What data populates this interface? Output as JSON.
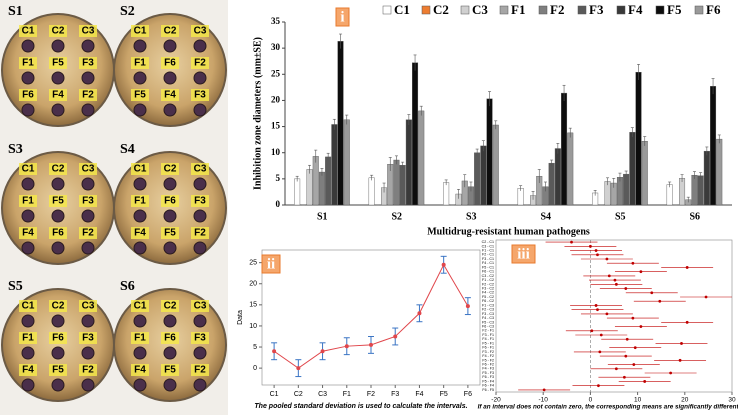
{
  "photos": [
    {
      "label": "S1",
      "wells": [
        "C1",
        "C2",
        "C3",
        "F1",
        "F5",
        "F3",
        "F6",
        "F4",
        "F2"
      ]
    },
    {
      "label": "S2",
      "wells": [
        "C1",
        "C2",
        "C3",
        "F1",
        "F6",
        "F2",
        "F5",
        "F4",
        "F3"
      ]
    },
    {
      "label": "S3",
      "wells": [
        "C1",
        "C2",
        "C3",
        "F1",
        "F5",
        "F3",
        "F4",
        "F6",
        "F2"
      ]
    },
    {
      "label": "S4",
      "wells": [
        "C1",
        "C2",
        "C3",
        "F1",
        "F6",
        "F3",
        "F4",
        "F5",
        "F2"
      ]
    },
    {
      "label": "S5",
      "wells": [
        "C1",
        "C2",
        "C3",
        "F1",
        "F6",
        "F3",
        "F4",
        "F5",
        "F2"
      ]
    },
    {
      "label": "S6",
      "wells": [
        "C1",
        "C2",
        "C3",
        "F1",
        "F6",
        "F3",
        "F4",
        "F5",
        "F2"
      ]
    }
  ],
  "chart_data": [
    {
      "type": "bar",
      "panel_label": "i",
      "ylabel": "Inhibition zone diameters (mm±SE)",
      "xlabel": "Multidrug-resistant human pathogens",
      "categories": [
        "S1",
        "S2",
        "S3",
        "S4",
        "S5",
        "S6"
      ],
      "ylim": [
        0,
        35
      ],
      "yticks": [
        0,
        5,
        10,
        15,
        20,
        25,
        30,
        35
      ],
      "series": [
        {
          "name": "C1",
          "color": "#ffffff",
          "values": [
            5,
            5.2,
            4.3,
            3.2,
            2.3,
            3.9
          ],
          "errors": [
            0.5,
            0.5,
            0.5,
            0.5,
            0.5,
            0.5
          ]
        },
        {
          "name": "C2",
          "color": "#ed7d31",
          "values": [
            0,
            0,
            0,
            0,
            0,
            0
          ],
          "errors": [
            0,
            0,
            0,
            0,
            0,
            0
          ]
        },
        {
          "name": "C3",
          "color": "#d0d0d0",
          "values": [
            6.8,
            3.3,
            2.1,
            1.8,
            4.5,
            5.1
          ],
          "errors": [
            0.8,
            0.9,
            0.9,
            0.8,
            0.7,
            0.7
          ]
        },
        {
          "name": "F1",
          "color": "#a6a6a6",
          "values": [
            9.3,
            7.8,
            4.6,
            5.5,
            4.2,
            1
          ],
          "errors": [
            1.2,
            1.3,
            1.2,
            1.3,
            0.9,
            0.5
          ]
        },
        {
          "name": "F2",
          "color": "#7f7f7f",
          "values": [
            6.3,
            8.6,
            3.5,
            3.5,
            5.3,
            5.7
          ],
          "errors": [
            0.7,
            0.8,
            0.9,
            0.9,
            0.8,
            0.7
          ]
        },
        {
          "name": "F3",
          "color": "#5a5a5a",
          "values": [
            9.2,
            7.6,
            10,
            8,
            5.9,
            5.6
          ],
          "errors": [
            0.7,
            0.6,
            0.7,
            0.6,
            0.6,
            0.6
          ]
        },
        {
          "name": "F4",
          "color": "#3a3a3a",
          "values": [
            15.4,
            16.3,
            11.3,
            10.8,
            13.9,
            10.3
          ],
          "errors": [
            1,
            1,
            1,
            1,
            0.9,
            0.8
          ]
        },
        {
          "name": "F5",
          "color": "#0d0d0d",
          "values": [
            31.3,
            27.2,
            20.3,
            21.4,
            25.4,
            22.7
          ],
          "errors": [
            1.4,
            1.5,
            1.4,
            1.5,
            1.5,
            1.5
          ]
        },
        {
          "name": "F6",
          "color": "#9a9a9a",
          "values": [
            16.3,
            18,
            15.3,
            13.8,
            12.2,
            12.6
          ],
          "errors": [
            0.9,
            0.9,
            0.8,
            0.9,
            0.9,
            0.8
          ]
        }
      ]
    },
    {
      "type": "line",
      "panel_label": "ii",
      "ylabel": "Data",
      "footnote": "The pooled standard deviation is used to calculate the intervals.",
      "categories": [
        "C1",
        "C2",
        "C3",
        "F1",
        "F2",
        "F3",
        "F4",
        "F5",
        "F6"
      ],
      "values": [
        4,
        0,
        4,
        5.2,
        5.5,
        7.5,
        13,
        24.5,
        14.7
      ],
      "errors": [
        2,
        2,
        2,
        2,
        2,
        2,
        2,
        2,
        2
      ],
      "color": "#e0464b",
      "error_color": "#3a74c4",
      "ylim": [
        -4,
        28
      ],
      "yticks": [
        0,
        5,
        10,
        15,
        20,
        25
      ]
    },
    {
      "type": "interval",
      "panel_label": "iii",
      "footnote": "If an interval does not contain zero, the corresponding means are significantly different.",
      "categories": [
        "C2 - C1",
        "C3 - C1",
        "F1 - C1",
        "F2 - C1",
        "F3 - C1",
        "F4 - C1",
        "F5 - C1",
        "F6 - C1",
        "C3 - C2",
        "F1 - C2",
        "F2 - C2",
        "F3 - C2",
        "F4 - C2",
        "F5 - C2",
        "F6 - C2",
        "F1 - C3",
        "F2 - C3",
        "F3 - C3",
        "F4 - C3",
        "F5 - C3",
        "F6 - C3",
        "F2 - F1",
        "F3 - F1",
        "F4 - F1",
        "F5 - F1",
        "F6 - F1",
        "F3 - F2",
        "F4 - F2",
        "F5 - F2",
        "F6 - F2",
        "F4 - F3",
        "F5 - F3",
        "F6 - F3",
        "F5 - F4",
        "F6 - F4",
        "F6 - F5"
      ],
      "values": [
        -4,
        0,
        1.2,
        1.5,
        3.5,
        9,
        20.5,
        10.7,
        4,
        5.2,
        5.5,
        7.5,
        13,
        24.5,
        14.7,
        1.2,
        1.5,
        3.5,
        9,
        20.5,
        10.7,
        0.3,
        2.3,
        7.8,
        19.3,
        9.5,
        2,
        7.5,
        19,
        9.2,
        5.5,
        17,
        7.2,
        11.5,
        1.7,
        -9.8
      ],
      "errors": [
        5.5,
        5.5,
        5.5,
        5.5,
        5.5,
        5.5,
        5.5,
        5.5,
        5.5,
        5.5,
        5.5,
        5.5,
        5.5,
        5.5,
        5.5,
        5.5,
        5.5,
        5.5,
        5.5,
        5.5,
        5.5,
        5.5,
        5.5,
        5.5,
        5.5,
        5.5,
        5.5,
        5.5,
        5.5,
        5.5,
        5.5,
        5.5,
        5.5,
        5.5,
        5.5,
        5.5
      ],
      "color": "#c00000",
      "reference_line": 0,
      "xlim": [
        -20,
        30
      ],
      "xticks": [
        -20,
        -10,
        0,
        10,
        20,
        30
      ]
    }
  ]
}
